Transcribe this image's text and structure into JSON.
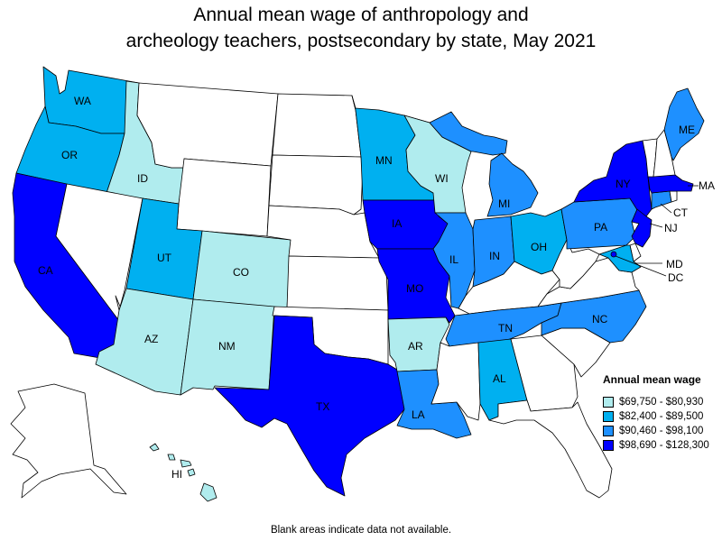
{
  "title_line1": "Annual mean wage of anthropology and",
  "title_line2": "archeology teachers, postsecondary by state, May 2021",
  "legend": {
    "title": "Annual mean wage",
    "bins": [
      {
        "label": "$69,750 - $80,930",
        "color": "#b0ecee"
      },
      {
        "label": "$82,400 - $89,500",
        "color": "#00b0f0"
      },
      {
        "label": "$90,460 - $98,100",
        "color": "#1e90ff"
      },
      {
        "label": "$98,690 - $128,300",
        "color": "#0000ff"
      }
    ],
    "no_data_color": "#ffffff"
  },
  "footnote": "Blank areas indicate data not available.",
  "states": {
    "WA": {
      "label": "WA",
      "bin": 1
    },
    "OR": {
      "label": "OR",
      "bin": 1
    },
    "CA": {
      "label": "CA",
      "bin": 3
    },
    "ID": {
      "label": "ID",
      "bin": 0
    },
    "NV": {
      "label": "",
      "bin": null
    },
    "MT": {
      "label": "",
      "bin": null
    },
    "WY": {
      "label": "",
      "bin": null
    },
    "UT": {
      "label": "UT",
      "bin": 1
    },
    "AZ": {
      "label": "AZ",
      "bin": 0
    },
    "CO": {
      "label": "CO",
      "bin": 0
    },
    "NM": {
      "label": "NM",
      "bin": 0
    },
    "ND": {
      "label": "",
      "bin": null
    },
    "SD": {
      "label": "",
      "bin": null
    },
    "NE": {
      "label": "",
      "bin": null
    },
    "KS": {
      "label": "",
      "bin": null
    },
    "OK": {
      "label": "",
      "bin": null
    },
    "TX": {
      "label": "TX",
      "bin": 3
    },
    "MN": {
      "label": "MN",
      "bin": 1
    },
    "IA": {
      "label": "IA",
      "bin": 3
    },
    "MO": {
      "label": "MO",
      "bin": 3
    },
    "AR": {
      "label": "AR",
      "bin": 0
    },
    "LA": {
      "label": "LA",
      "bin": 2
    },
    "WI": {
      "label": "WI",
      "bin": 0
    },
    "IL": {
      "label": "IL",
      "bin": 2
    },
    "MI": {
      "label": "MI",
      "bin": 2
    },
    "IN": {
      "label": "IN",
      "bin": 2
    },
    "OH": {
      "label": "OH",
      "bin": 1
    },
    "KY": {
      "label": "",
      "bin": null
    },
    "TN": {
      "label": "TN",
      "bin": 2
    },
    "MS": {
      "label": "",
      "bin": null
    },
    "AL": {
      "label": "AL",
      "bin": 1
    },
    "GA": {
      "label": "",
      "bin": null
    },
    "FL": {
      "label": "",
      "bin": null
    },
    "SC": {
      "label": "",
      "bin": null
    },
    "NC": {
      "label": "NC",
      "bin": 2
    },
    "VA": {
      "label": "",
      "bin": null
    },
    "WV": {
      "label": "",
      "bin": null
    },
    "PA": {
      "label": "PA",
      "bin": 2
    },
    "NY": {
      "label": "NY",
      "bin": 3
    },
    "NJ": {
      "label": "NJ",
      "bin": 3
    },
    "DE": {
      "label": "",
      "bin": null
    },
    "MD": {
      "label": "MD",
      "bin": 1
    },
    "DC": {
      "label": "DC",
      "bin": 3
    },
    "CT": {
      "label": "CT",
      "bin": 2
    },
    "RI": {
      "label": "",
      "bin": null
    },
    "MA": {
      "label": "MA",
      "bin": 3
    },
    "VT": {
      "label": "",
      "bin": null
    },
    "NH": {
      "label": "",
      "bin": null
    },
    "ME": {
      "label": "ME",
      "bin": 2
    },
    "AK": {
      "label": "",
      "bin": null
    },
    "HI": {
      "label": "HI",
      "bin": 0
    }
  }
}
